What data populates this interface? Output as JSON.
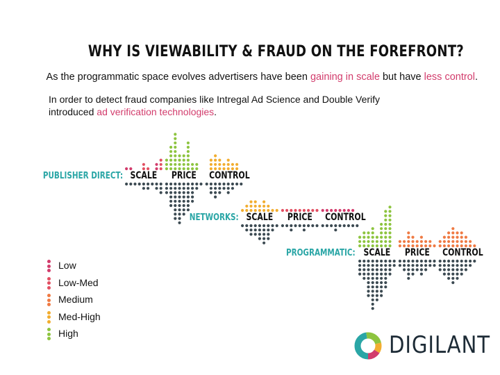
{
  "title": "WHY IS VIEWABILITY & FRAUD ON THE FOREFRONT?",
  "subtitle": {
    "before": "As the programmatic space evolves advertisers have been ",
    "hl1": "gaining in scale",
    "mid": " but have ",
    "hl2": "less control",
    "after": "."
  },
  "paragraph": {
    "line1": "In order to detect fraud companies like Intregal Ad Science and Double Verify",
    "line2_before": "introduced ",
    "line2_hl": "ad verification technologies",
    "line2_after": "."
  },
  "colors": {
    "highlight": "#d23c6c",
    "row_label": "#2aa6a6",
    "below_dots": "#3c4a52",
    "low": "#d23c6c",
    "low_med": "#e24f62",
    "medium": "#ef7a43",
    "med_high": "#f2ad2f",
    "high": "#8dc43f"
  },
  "rows": [
    {
      "label": "PUBLISHER DIRECT:",
      "categories": [
        {
          "name": "SCALE",
          "up": [
            1,
            1,
            0,
            0,
            2,
            1,
            0,
            2,
            3
          ],
          "up_level": [
            "low",
            "low",
            "low",
            "low",
            "low_med",
            "low_med",
            "low_med",
            "low",
            "low_med"
          ],
          "down": [
            1,
            1,
            1,
            1,
            2,
            2,
            1,
            2,
            3
          ]
        },
        {
          "name": "PRICE",
          "up": [
            3,
            6,
            9,
            4,
            4,
            7,
            2,
            2,
            0
          ],
          "up_level": [
            "high",
            "high",
            "high",
            "high",
            "high",
            "high",
            "high",
            "high",
            "high"
          ],
          "down": [
            3,
            6,
            9,
            10,
            8,
            7,
            5,
            2,
            1
          ]
        },
        {
          "name": "CONTROL",
          "up": [
            0,
            3,
            4,
            3,
            2,
            3,
            2,
            2,
            0
          ],
          "up_level": [
            "med_high",
            "med_high",
            "med_high",
            "med_high",
            "med_high",
            "med_high",
            "med_high",
            "med_high",
            "med_high"
          ],
          "down": [
            1,
            3,
            4,
            3,
            2,
            3,
            2,
            1,
            1
          ]
        }
      ]
    },
    {
      "label": "NETWORKS:",
      "categories": [
        {
          "name": "SCALE",
          "up": [
            1,
            2,
            3,
            3,
            2,
            3,
            2,
            1,
            1
          ],
          "up_level": [
            "med_high",
            "med_high",
            "med_high",
            "med_high",
            "med_high",
            "med_high",
            "med_high",
            "med_high",
            "med_high"
          ],
          "down": [
            1,
            2,
            3,
            3,
            4,
            5,
            4,
            2,
            1
          ]
        },
        {
          "name": "PRICE",
          "up": [
            1,
            1,
            1,
            1,
            1,
            1,
            1,
            1,
            1
          ],
          "up_level": [
            "low_med",
            "low_med",
            "low_med",
            "low_med",
            "low_med",
            "low_med",
            "low_med",
            "low_med",
            "low_med"
          ],
          "down": [
            1,
            1,
            2,
            1,
            1,
            2,
            1,
            1,
            1
          ]
        },
        {
          "name": "CONTROL",
          "up": [
            1,
            1,
            1,
            1,
            1,
            1,
            1,
            1,
            0
          ],
          "up_level": [
            "low",
            "low",
            "low",
            "low",
            "low",
            "low",
            "low",
            "low",
            "low"
          ],
          "down": [
            1,
            1,
            1,
            2,
            1,
            1,
            1,
            1,
            1
          ]
        }
      ]
    },
    {
      "label": "PROGRAMMATIC:",
      "categories": [
        {
          "name": "SCALE",
          "up": [
            3,
            4,
            4,
            5,
            3,
            6,
            9,
            10,
            0
          ],
          "up_level": [
            "high",
            "high",
            "high",
            "high",
            "high",
            "high",
            "high",
            "high",
            "high"
          ],
          "down": [
            4,
            5,
            9,
            12,
            10,
            9,
            7,
            4,
            2
          ]
        },
        {
          "name": "PRICE",
          "up": [
            2,
            2,
            4,
            3,
            2,
            3,
            2,
            2,
            1
          ],
          "up_level": [
            "medium",
            "medium",
            "medium",
            "medium",
            "medium",
            "medium",
            "medium",
            "medium",
            "medium"
          ],
          "down": [
            2,
            3,
            5,
            4,
            3,
            4,
            3,
            2,
            2
          ]
        },
        {
          "name": "CONTROL",
          "up": [
            2,
            3,
            4,
            5,
            4,
            4,
            3,
            2,
            1
          ],
          "up_level": [
            "medium",
            "medium",
            "medium",
            "medium",
            "medium",
            "medium",
            "medium",
            "medium",
            "medium"
          ],
          "down": [
            3,
            4,
            5,
            6,
            5,
            4,
            3,
            2,
            1
          ]
        }
      ]
    }
  ],
  "legend": [
    {
      "label": "Low",
      "level": "low"
    },
    {
      "label": "Low-Med",
      "level": "low_med"
    },
    {
      "label": "Medium",
      "level": "medium"
    },
    {
      "label": "Med-High",
      "level": "med_high"
    },
    {
      "label": "High",
      "level": "high"
    }
  ],
  "logo": {
    "text": "DIGILANT",
    "icon": "digilant-ring-icon"
  }
}
